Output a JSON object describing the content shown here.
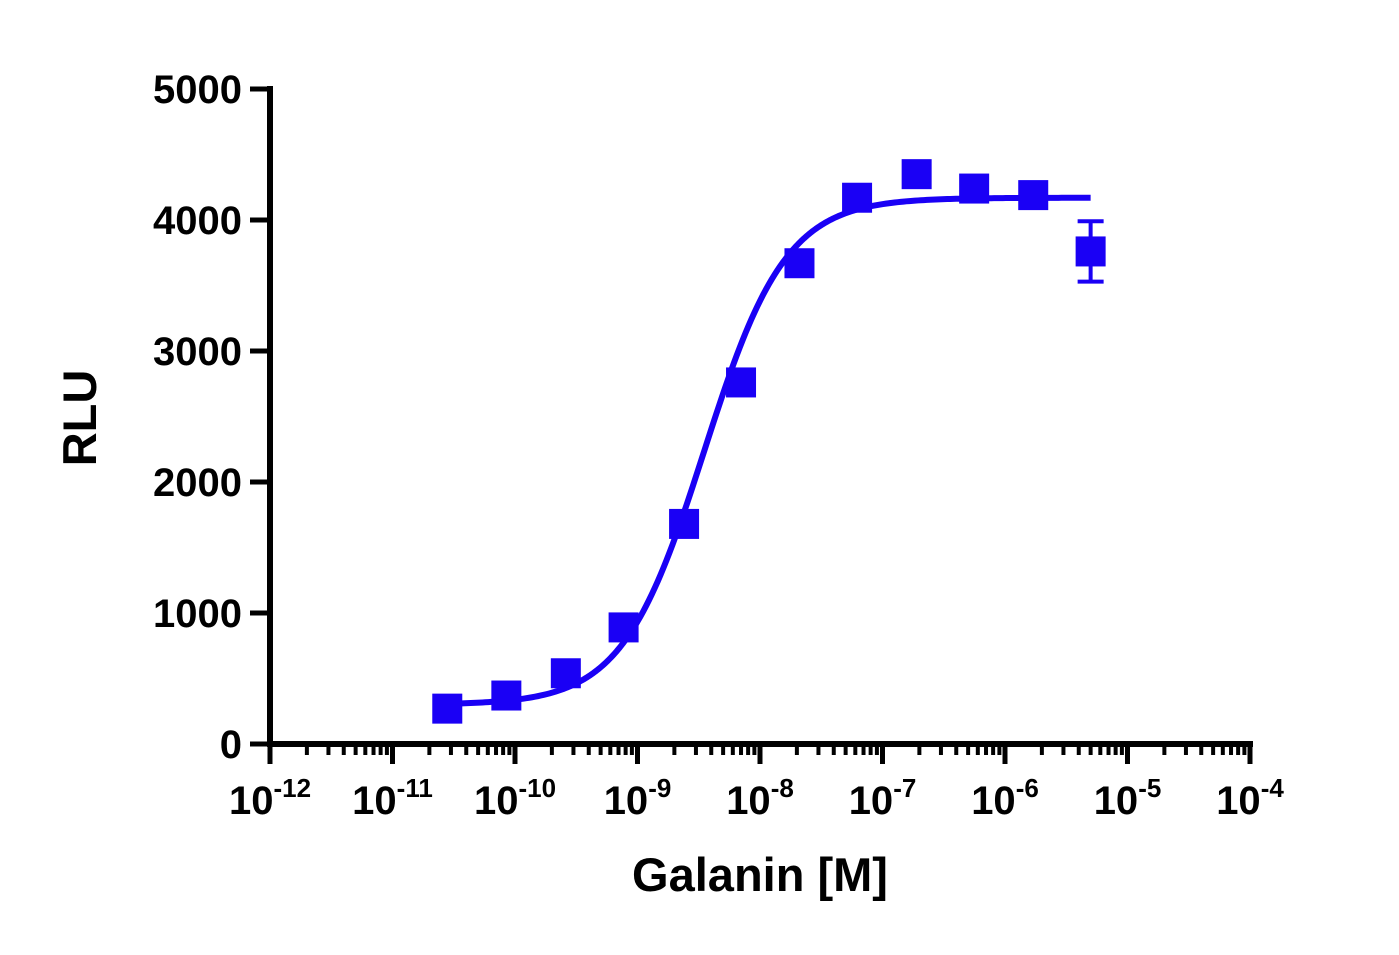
{
  "chart_data": {
    "type": "scatter",
    "xlabel": "Galanin [M]",
    "ylabel": "RLU",
    "x_scale": "log",
    "xlim": [
      1e-12,
      0.0001
    ],
    "ylim": [
      0,
      5000
    ],
    "x_tick_labels": [
      {
        "base": "10",
        "exp": "-12"
      },
      {
        "base": "10",
        "exp": "-11"
      },
      {
        "base": "10",
        "exp": "-10"
      },
      {
        "base": "10",
        "exp": "-9"
      },
      {
        "base": "10",
        "exp": "-8"
      },
      {
        "base": "10",
        "exp": "-7"
      },
      {
        "base": "10",
        "exp": "-6"
      },
      {
        "base": "10",
        "exp": "-5"
      },
      {
        "base": "10",
        "exp": "-4"
      }
    ],
    "y_tick_labels": [
      "0",
      "1000",
      "2000",
      "3000",
      "4000",
      "5000"
    ],
    "grid": false,
    "color": "#1a00f5",
    "series": [
      {
        "marker": "square",
        "points": [
          {
            "x": 2.8e-11,
            "y": 270
          },
          {
            "x": 8.5e-11,
            "y": 370
          },
          {
            "x": 2.6e-10,
            "y": 540
          },
          {
            "x": 7.7e-10,
            "y": 890
          },
          {
            "x": 2.4e-09,
            "y": 1680
          },
          {
            "x": 7e-09,
            "y": 2760
          },
          {
            "x": 2.1e-08,
            "y": 3670
          },
          {
            "x": 6.2e-08,
            "y": 4170
          },
          {
            "x": 1.9e-07,
            "y": 4350
          },
          {
            "x": 5.6e-07,
            "y": 4240
          },
          {
            "x": 1.7e-06,
            "y": 4190
          },
          {
            "x": 5e-06,
            "y": 3760,
            "yerr": 230
          }
        ]
      }
    ],
    "fit_curve": {
      "model": "four-parameter logistic",
      "bottom": 300,
      "top": 4170,
      "ec50": 3.5e-09,
      "hill": 1.3,
      "x_range": [
        2.8e-11,
        5e-06
      ]
    }
  }
}
